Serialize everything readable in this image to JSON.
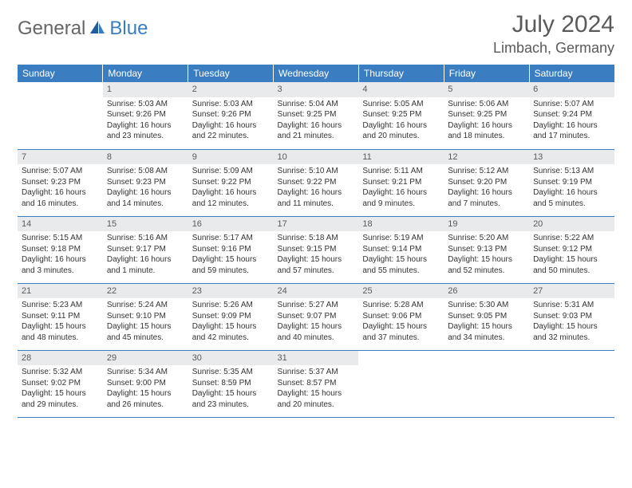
{
  "logo": {
    "part1": "General",
    "part2": "Blue"
  },
  "title": "July 2024",
  "location": "Limbach, Germany",
  "colors": {
    "header_bg": "#3a7ec1",
    "header_text": "#ffffff",
    "daynum_bg": "#e9eaec",
    "border": "#3a7ec1",
    "title_color": "#5a5a5a"
  },
  "weekdays": [
    "Sunday",
    "Monday",
    "Tuesday",
    "Wednesday",
    "Thursday",
    "Friday",
    "Saturday"
  ],
  "weeks": [
    [
      null,
      {
        "n": "1",
        "sr": "5:03 AM",
        "ss": "9:26 PM",
        "dl": "16 hours and 23 minutes."
      },
      {
        "n": "2",
        "sr": "5:03 AM",
        "ss": "9:26 PM",
        "dl": "16 hours and 22 minutes."
      },
      {
        "n": "3",
        "sr": "5:04 AM",
        "ss": "9:25 PM",
        "dl": "16 hours and 21 minutes."
      },
      {
        "n": "4",
        "sr": "5:05 AM",
        "ss": "9:25 PM",
        "dl": "16 hours and 20 minutes."
      },
      {
        "n": "5",
        "sr": "5:06 AM",
        "ss": "9:25 PM",
        "dl": "16 hours and 18 minutes."
      },
      {
        "n": "6",
        "sr": "5:07 AM",
        "ss": "9:24 PM",
        "dl": "16 hours and 17 minutes."
      }
    ],
    [
      {
        "n": "7",
        "sr": "5:07 AM",
        "ss": "9:23 PM",
        "dl": "16 hours and 16 minutes."
      },
      {
        "n": "8",
        "sr": "5:08 AM",
        "ss": "9:23 PM",
        "dl": "16 hours and 14 minutes."
      },
      {
        "n": "9",
        "sr": "5:09 AM",
        "ss": "9:22 PM",
        "dl": "16 hours and 12 minutes."
      },
      {
        "n": "10",
        "sr": "5:10 AM",
        "ss": "9:22 PM",
        "dl": "16 hours and 11 minutes."
      },
      {
        "n": "11",
        "sr": "5:11 AM",
        "ss": "9:21 PM",
        "dl": "16 hours and 9 minutes."
      },
      {
        "n": "12",
        "sr": "5:12 AM",
        "ss": "9:20 PM",
        "dl": "16 hours and 7 minutes."
      },
      {
        "n": "13",
        "sr": "5:13 AM",
        "ss": "9:19 PM",
        "dl": "16 hours and 5 minutes."
      }
    ],
    [
      {
        "n": "14",
        "sr": "5:15 AM",
        "ss": "9:18 PM",
        "dl": "16 hours and 3 minutes."
      },
      {
        "n": "15",
        "sr": "5:16 AM",
        "ss": "9:17 PM",
        "dl": "16 hours and 1 minute."
      },
      {
        "n": "16",
        "sr": "5:17 AM",
        "ss": "9:16 PM",
        "dl": "15 hours and 59 minutes."
      },
      {
        "n": "17",
        "sr": "5:18 AM",
        "ss": "9:15 PM",
        "dl": "15 hours and 57 minutes."
      },
      {
        "n": "18",
        "sr": "5:19 AM",
        "ss": "9:14 PM",
        "dl": "15 hours and 55 minutes."
      },
      {
        "n": "19",
        "sr": "5:20 AM",
        "ss": "9:13 PM",
        "dl": "15 hours and 52 minutes."
      },
      {
        "n": "20",
        "sr": "5:22 AM",
        "ss": "9:12 PM",
        "dl": "15 hours and 50 minutes."
      }
    ],
    [
      {
        "n": "21",
        "sr": "5:23 AM",
        "ss": "9:11 PM",
        "dl": "15 hours and 48 minutes."
      },
      {
        "n": "22",
        "sr": "5:24 AM",
        "ss": "9:10 PM",
        "dl": "15 hours and 45 minutes."
      },
      {
        "n": "23",
        "sr": "5:26 AM",
        "ss": "9:09 PM",
        "dl": "15 hours and 42 minutes."
      },
      {
        "n": "24",
        "sr": "5:27 AM",
        "ss": "9:07 PM",
        "dl": "15 hours and 40 minutes."
      },
      {
        "n": "25",
        "sr": "5:28 AM",
        "ss": "9:06 PM",
        "dl": "15 hours and 37 minutes."
      },
      {
        "n": "26",
        "sr": "5:30 AM",
        "ss": "9:05 PM",
        "dl": "15 hours and 34 minutes."
      },
      {
        "n": "27",
        "sr": "5:31 AM",
        "ss": "9:03 PM",
        "dl": "15 hours and 32 minutes."
      }
    ],
    [
      {
        "n": "28",
        "sr": "5:32 AM",
        "ss": "9:02 PM",
        "dl": "15 hours and 29 minutes."
      },
      {
        "n": "29",
        "sr": "5:34 AM",
        "ss": "9:00 PM",
        "dl": "15 hours and 26 minutes."
      },
      {
        "n": "30",
        "sr": "5:35 AM",
        "ss": "8:59 PM",
        "dl": "15 hours and 23 minutes."
      },
      {
        "n": "31",
        "sr": "5:37 AM",
        "ss": "8:57 PM",
        "dl": "15 hours and 20 minutes."
      },
      null,
      null,
      null
    ]
  ],
  "labels": {
    "sunrise": "Sunrise:",
    "sunset": "Sunset:",
    "daylight": "Daylight:"
  }
}
